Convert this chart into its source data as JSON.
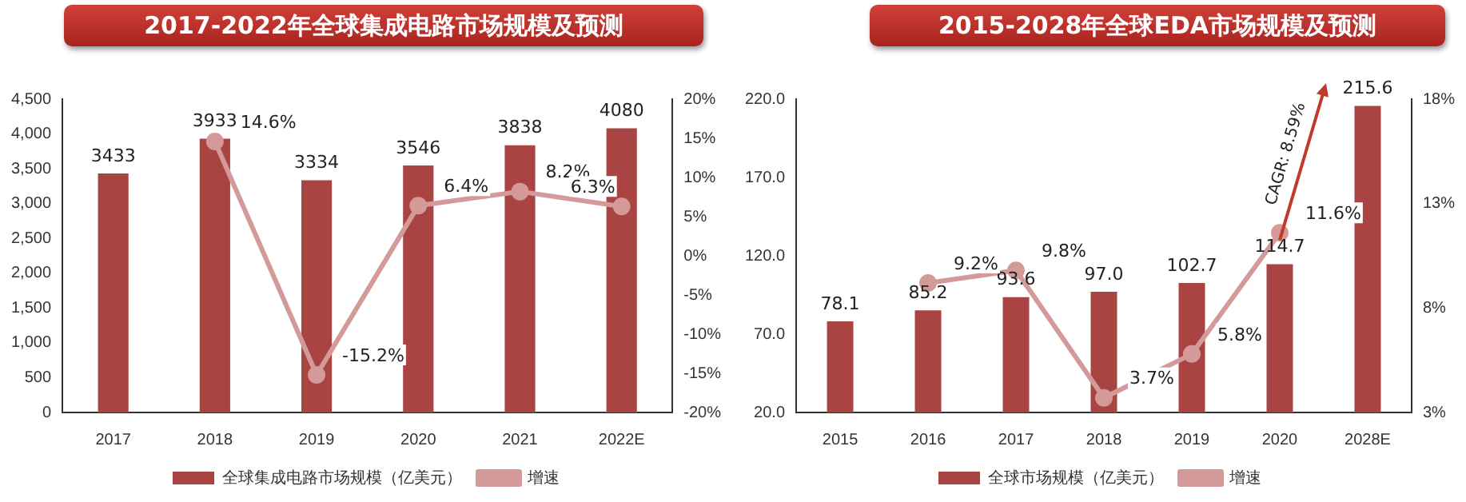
{
  "chart_data": [
    {
      "type": "bar",
      "title": "2017-2022年全球集成电路市场规模及预测",
      "categories": [
        "2017",
        "2018",
        "2019",
        "2020",
        "2021",
        "2022E"
      ],
      "series": [
        {
          "name": "全球集成电路市场规模（亿美元）",
          "color": "#a94442",
          "values": [
            3433,
            3933,
            3334,
            3546,
            3838,
            4080
          ],
          "value_labels": [
            "3433",
            "3933",
            "3334",
            "3546",
            "3838",
            "4080"
          ]
        },
        {
          "name": "增速",
          "type": "line",
          "axis": "y2",
          "color": "#d49a9a",
          "values": [
            null,
            14.6,
            -15.2,
            6.4,
            8.2,
            6.3
          ],
          "value_labels": [
            null,
            "14.6%",
            "-15.2%",
            "6.4%",
            "8.2%",
            "6.3%"
          ]
        }
      ],
      "ylim": [
        0,
        4500
      ],
      "yticks": [
        0,
        {
          "value": 500,
          "label": "500"
        },
        {
          "value": 1000,
          "label": "1,000"
        },
        {
          "value": 1500,
          "label": "1,500"
        },
        {
          "value": 2000,
          "label": "2,000"
        },
        {
          "value": 2500,
          "label": "2,500"
        },
        {
          "value": 3000,
          "label": "3,000"
        },
        {
          "value": 3500,
          "label": "3,500"
        },
        {
          "value": 4000,
          "label": "4,000"
        },
        {
          "value": 4500,
          "label": "4,500"
        }
      ],
      "y2lim": [
        -20,
        20
      ],
      "y2ticks": [
        {
          "value": -20,
          "label": "-20%"
        },
        {
          "value": -15,
          "label": "-15%"
        },
        {
          "value": -10,
          "label": "-10%"
        },
        {
          "value": -5,
          "label": "-5%"
        },
        {
          "value": 0,
          "label": "0%"
        },
        {
          "value": 5,
          "label": "5%"
        },
        {
          "value": 10,
          "label": "10%"
        },
        {
          "value": 15,
          "label": "15%"
        },
        {
          "value": 20,
          "label": "20%"
        }
      ],
      "grid": false,
      "legend": "bottom",
      "marker": "circle"
    },
    {
      "type": "bar",
      "title": "2015-2028年全球EDA市场规模及预测",
      "categories": [
        "2015",
        "2016",
        "2017",
        "2018",
        "2019",
        "2020",
        "2028E"
      ],
      "series": [
        {
          "name": "全球市场规模（亿美元）",
          "color": "#a94442",
          "values": [
            78.1,
            85.2,
            93.6,
            97.0,
            102.7,
            114.7,
            215.6
          ],
          "value_labels": [
            "78.1",
            "85.2",
            "93.6",
            "97.0",
            "102.7",
            "114.7",
            "215.6"
          ]
        },
        {
          "name": "增速",
          "type": "line",
          "axis": "y2",
          "color": "#d49a9a",
          "values": [
            null,
            9.2,
            9.8,
            3.7,
            5.8,
            11.6,
            null
          ],
          "value_labels": [
            null,
            "9.2%",
            "9.8%",
            "3.7%",
            "5.8%",
            "11.6%",
            null
          ]
        }
      ],
      "ylim": [
        20,
        220
      ],
      "yticks": [
        {
          "value": 20,
          "label": "20.0"
        },
        {
          "value": 70,
          "label": "70.0"
        },
        {
          "value": 120,
          "label": "120.0"
        },
        {
          "value": 170,
          "label": "170.0"
        },
        {
          "value": 220,
          "label": "220.0"
        }
      ],
      "y2lim": [
        3,
        18
      ],
      "y2ticks": [
        {
          "value": 3,
          "label": "3%"
        },
        {
          "value": 8,
          "label": "8%"
        },
        {
          "value": 13,
          "label": "13%"
        },
        {
          "value": 18,
          "label": "18%"
        }
      ],
      "annotations": [
        "CAGR: 8.59%"
      ],
      "grid": false,
      "legend": "bottom",
      "marker": "circle"
    }
  ]
}
